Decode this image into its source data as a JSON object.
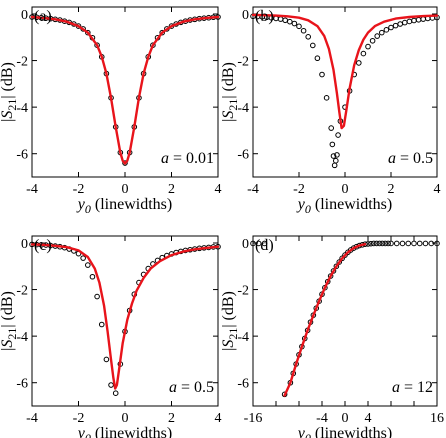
{
  "chart_data": [
    {
      "type": "scatter",
      "panel_label": "(a)",
      "param_label": "a = 0.01",
      "param_parts": {
        "var": "a",
        "rest": " = 0.01"
      },
      "xlabel_var": "y",
      "xlabel_sub": "0",
      "xlabel_rest": " (linewidths)",
      "ylabel": "|S21| (dB)",
      "ylabel_parts": {
        "open": "|",
        "var": "S",
        "sub": "21",
        "close": "| (dB)"
      },
      "xlim": [
        -4,
        4
      ],
      "ylim": [
        -7,
        0.3
      ],
      "xticks": [
        -4,
        -2,
        0,
        2,
        4
      ],
      "xtick_labels": [
        "-4",
        "-2",
        "0",
        "2",
        "4"
      ],
      "yticks": [
        0,
        -2,
        -4,
        -6
      ],
      "ytick_labels": [
        "0",
        "-2",
        "-4",
        "-6"
      ],
      "series": [
        {
          "kind": "points",
          "x": [
            -4,
            -3.8,
            -3.6,
            -3.4,
            -3.2,
            -3,
            -2.8,
            -2.6,
            -2.4,
            -2.2,
            -2,
            -1.8,
            -1.6,
            -1.4,
            -1.2,
            -1,
            -0.8,
            -0.6,
            -0.4,
            -0.2,
            0,
            0.2,
            0.4,
            0.6,
            0.8,
            1,
            1.2,
            1.4,
            1.6,
            1.8,
            2,
            2.2,
            2.4,
            2.6,
            2.8,
            3,
            3.2,
            3.4,
            3.6,
            3.8,
            4
          ],
          "y": [
            -0.13,
            -0.14,
            -0.16,
            -0.18,
            -0.2,
            -0.23,
            -0.26,
            -0.31,
            -0.36,
            -0.43,
            -0.52,
            -0.64,
            -0.8,
            -1.02,
            -1.34,
            -1.84,
            -2.56,
            -3.6,
            -4.85,
            -5.95,
            -6.4,
            -5.95,
            -4.85,
            -3.6,
            -2.56,
            -1.84,
            -1.34,
            -1.02,
            -0.8,
            -0.64,
            -0.52,
            -0.43,
            -0.36,
            -0.31,
            -0.26,
            -0.23,
            -0.2,
            -0.18,
            -0.16,
            -0.14,
            -0.13
          ]
        },
        {
          "kind": "line",
          "color": "#e8141b",
          "x": [
            -4,
            -3.5,
            -3,
            -2.5,
            -2,
            -1.6,
            -1.2,
            -1,
            -0.8,
            -0.6,
            -0.4,
            -0.3,
            -0.2,
            -0.1,
            0,
            0.1,
            0.2,
            0.3,
            0.4,
            0.6,
            0.8,
            1,
            1.2,
            1.6,
            2,
            2.5,
            3,
            3.5,
            4
          ],
          "y": [
            -0.13,
            -0.17,
            -0.23,
            -0.33,
            -0.52,
            -0.8,
            -1.34,
            -1.84,
            -2.56,
            -3.6,
            -4.85,
            -5.4,
            -5.95,
            -6.3,
            -6.42,
            -6.3,
            -5.95,
            -5.4,
            -4.85,
            -3.6,
            -2.56,
            -1.84,
            -1.34,
            -0.8,
            -0.52,
            -0.33,
            -0.23,
            -0.17,
            -0.13
          ]
        }
      ]
    },
    {
      "type": "scatter",
      "panel_label": "(b)",
      "param_label": "a = 0.5",
      "param_parts": {
        "var": "a",
        "rest": " = 0.5"
      },
      "xlabel_var": "y",
      "xlabel_sub": "0",
      "xlabel_rest": " (linewidths)",
      "ylabel": "|S21| (dB)",
      "ylabel_parts": {
        "open": "|",
        "var": "S",
        "sub": "21",
        "close": "| (dB)"
      },
      "xlim": [
        -4,
        4
      ],
      "ylim": [
        -7,
        0.3
      ],
      "xticks": [
        -4,
        -2,
        0,
        2,
        4
      ],
      "xtick_labels": [
        "-4",
        "-2",
        "0",
        "2",
        "4"
      ],
      "yticks": [
        0,
        -2,
        -4,
        -6
      ],
      "ytick_labels": [
        "0",
        "-2",
        "-4",
        "-6"
      ],
      "series": [
        {
          "kind": "points",
          "x": [
            -4,
            -3.8,
            -3.6,
            -3.4,
            -3.2,
            -3,
            -2.8,
            -2.6,
            -2.4,
            -2.2,
            -2,
            -1.8,
            -1.6,
            -1.4,
            -1.2,
            -1,
            -0.8,
            -0.6,
            -0.55,
            -0.5,
            -0.45,
            -0.4,
            -0.35,
            -0.3,
            -0.2,
            0,
            0.2,
            0.4,
            0.6,
            0.8,
            1,
            1.2,
            1.4,
            1.6,
            1.8,
            2,
            2.2,
            2.4,
            2.6,
            2.8,
            3,
            3.2,
            3.4,
            3.6,
            3.8,
            4
          ],
          "y": [
            -0.1,
            -0.11,
            -0.12,
            -0.14,
            -0.16,
            -0.19,
            -0.22,
            -0.27,
            -0.33,
            -0.41,
            -0.53,
            -0.72,
            -0.98,
            -1.35,
            -1.9,
            -2.6,
            -3.6,
            -4.9,
            -5.6,
            -6.1,
            -6.5,
            -6.3,
            -6.05,
            -5.2,
            -4.6,
            -4.0,
            -3.3,
            -2.6,
            -2.1,
            -1.7,
            -1.4,
            -1.15,
            -0.95,
            -0.8,
            -0.68,
            -0.58,
            -0.5,
            -0.43,
            -0.37,
            -0.32,
            -0.28,
            -0.25,
            -0.22,
            -0.19,
            -0.17,
            -0.15
          ]
        },
        {
          "kind": "line",
          "color": "#e8141b",
          "x": [
            -4,
            -3.5,
            -3,
            -2.5,
            -2,
            -1.6,
            -1.2,
            -0.9,
            -0.7,
            -0.5,
            -0.35,
            -0.25,
            -0.15,
            -0.05,
            0.05,
            0.2,
            0.4,
            0.6,
            0.8,
            1,
            1.3,
            1.7,
            2.2,
            2.8,
            3.4,
            4
          ],
          "y": [
            -0.04,
            -0.05,
            -0.07,
            -0.1,
            -0.16,
            -0.27,
            -0.52,
            -0.95,
            -1.5,
            -2.4,
            -3.4,
            -4.2,
            -4.9,
            -4.8,
            -4.2,
            -3.2,
            -2.2,
            -1.55,
            -1.1,
            -0.8,
            -0.52,
            -0.33,
            -0.2,
            -0.13,
            -0.09,
            -0.07
          ]
        }
      ]
    },
    {
      "type": "scatter",
      "panel_label": "(c)",
      "param_label": "a = 0.5",
      "param_parts": {
        "var": "a",
        "rest": " = 0.5"
      },
      "xlabel_var": "y",
      "xlabel_sub": "0",
      "xlabel_rest": " (linewidths)",
      "ylabel": "|S21| (dB)",
      "ylabel_parts": {
        "open": "|",
        "var": "S",
        "sub": "21",
        "close": "| (dB)"
      },
      "xlim": [
        -4,
        4
      ],
      "ylim": [
        -7,
        0.3
      ],
      "xticks": [
        -4,
        -2,
        0,
        2,
        4
      ],
      "xtick_labels": [
        "-4",
        "-2",
        "0",
        "2",
        "4"
      ],
      "yticks": [
        0,
        -2,
        -4,
        -6
      ],
      "ytick_labels": [
        "0",
        "-2",
        "-4",
        "-6"
      ],
      "series": [
        {
          "kind": "points",
          "x": [
            -4,
            -3.8,
            -3.6,
            -3.4,
            -3.2,
            -3,
            -2.8,
            -2.6,
            -2.4,
            -2.2,
            -2,
            -1.8,
            -1.6,
            -1.4,
            -1.2,
            -1,
            -0.8,
            -0.6,
            -0.4,
            -0.2,
            0,
            0.2,
            0.4,
            0.6,
            0.8,
            1,
            1.2,
            1.4,
            1.6,
            1.8,
            2,
            2.2,
            2.4,
            2.6,
            2.8,
            3,
            3.2,
            3.4,
            3.6,
            3.8,
            4
          ],
          "y": [
            -0.06,
            -0.07,
            -0.08,
            -0.09,
            -0.11,
            -0.13,
            -0.16,
            -0.2,
            -0.26,
            -0.34,
            -0.46,
            -0.65,
            -0.95,
            -1.45,
            -2.3,
            -3.5,
            -5.0,
            -6.1,
            -6.45,
            -5.2,
            -3.8,
            -2.9,
            -2.2,
            -1.7,
            -1.35,
            -1.1,
            -0.9,
            -0.75,
            -0.63,
            -0.54,
            -0.47,
            -0.41,
            -0.36,
            -0.32,
            -0.29,
            -0.26,
            -0.23,
            -0.21,
            -0.19,
            -0.17,
            -0.16
          ]
        },
        {
          "kind": "line",
          "color": "#e8141b",
          "x": [
            -4,
            -3.5,
            -3,
            -2.5,
            -2,
            -1.6,
            -1.3,
            -1.1,
            -0.9,
            -0.75,
            -0.6,
            -0.5,
            -0.42,
            -0.35,
            -0.25,
            -0.1,
            0.1,
            0.3,
            0.5,
            0.8,
            1.1,
            1.5,
            2,
            2.5,
            3,
            3.5,
            4
          ],
          "y": [
            -0.06,
            -0.08,
            -0.12,
            -0.18,
            -0.32,
            -0.6,
            -1.1,
            -1.7,
            -2.7,
            -3.8,
            -5.0,
            -5.8,
            -6.25,
            -6.1,
            -5.4,
            -4.3,
            -3.3,
            -2.6,
            -2.05,
            -1.5,
            -1.1,
            -0.78,
            -0.52,
            -0.37,
            -0.27,
            -0.21,
            -0.16
          ]
        }
      ]
    },
    {
      "type": "scatter",
      "panel_label": "(d)",
      "param_label": "a = 12",
      "param_parts": {
        "var": "a",
        "rest": " = 12"
      },
      "xlabel_var": "y",
      "xlabel_sub": "0",
      "xlabel_rest": " (linewidths)",
      "ylabel": "|S21| (dB)",
      "ylabel_parts": {
        "open": "|",
        "var": "S",
        "sub": "21",
        "close": "| (dB)"
      },
      "xlim": [
        -16,
        16
      ],
      "ylim": [
        -7,
        0.3
      ],
      "xticks": [
        -16,
        -12,
        -8,
        -4,
        0,
        4,
        8,
        12,
        16
      ],
      "xtick_labels": [
        "-16",
        "",
        "",
        "-4",
        "0",
        "4",
        "",
        "",
        "16"
      ],
      "yticks": [
        0,
        -2,
        -4,
        -6
      ],
      "ytick_labels": [
        "0",
        "-2",
        "-4",
        "-6"
      ],
      "series": [
        {
          "kind": "points",
          "x": [
            -16,
            -15,
            -14,
            -10.5,
            -9.5,
            -9,
            -8.5,
            -8,
            -7.5,
            -7,
            -6.5,
            -6,
            -5.5,
            -5,
            -4.5,
            -4,
            -3.5,
            -3,
            -2.5,
            -2,
            -1.5,
            -1,
            -0.5,
            0,
            0.5,
            1,
            1.5,
            2,
            2.5,
            3,
            3.5,
            4,
            4.5,
            5,
            5.5,
            6,
            6.5,
            7,
            7.5,
            8,
            9,
            10,
            11,
            12,
            13,
            14,
            15,
            16
          ],
          "y": [
            -0.02,
            -0.02,
            -0.02,
            -6.5,
            -6.0,
            -5.6,
            -5.2,
            -4.8,
            -4.45,
            -4.1,
            -3.75,
            -3.4,
            -3.1,
            -2.8,
            -2.5,
            -2.2,
            -1.92,
            -1.66,
            -1.42,
            -1.2,
            -1.0,
            -0.82,
            -0.66,
            -0.52,
            -0.4,
            -0.3,
            -0.22,
            -0.16,
            -0.11,
            -0.08,
            -0.05,
            -0.04,
            -0.03,
            -0.02,
            -0.02,
            -0.02,
            -0.02,
            -0.02,
            -0.02,
            -0.02,
            -0.02,
            -0.02,
            -0.02,
            -0.02,
            -0.02,
            -0.02,
            -0.02,
            -0.02
          ]
        },
        {
          "kind": "line",
          "color": "#e8141b",
          "x": [
            -10.5,
            -9.5,
            -8.5,
            -7.5,
            -6.5,
            -5.5,
            -4.5,
            -3.5,
            -2.5,
            -1.5,
            -0.5,
            0.5,
            1.5,
            2.5,
            3.5
          ],
          "y": [
            -6.55,
            -6.0,
            -5.2,
            -4.45,
            -3.75,
            -3.1,
            -2.5,
            -1.92,
            -1.42,
            -1.0,
            -0.66,
            -0.4,
            -0.22,
            -0.11,
            -0.05
          ]
        }
      ]
    }
  ]
}
